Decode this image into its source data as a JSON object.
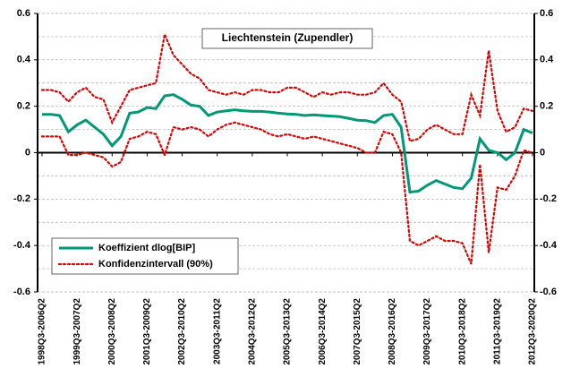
{
  "chart_data": {
    "type": "line",
    "title": "Liechtenstein (Zupendler)",
    "categories": [
      "1998Q3-2006Q2",
      null,
      null,
      null,
      "1999Q3-2007Q2",
      null,
      null,
      null,
      "2000Q3-2008Q2",
      null,
      null,
      null,
      "2001Q3-2009Q2",
      null,
      null,
      null,
      "2002Q3-2010Q2",
      null,
      null,
      null,
      "2003Q3-2011Q2",
      null,
      null,
      null,
      "2004Q3-2012Q2",
      null,
      null,
      null,
      "2005Q3-2013Q2",
      null,
      null,
      null,
      "2006Q3-2014Q2",
      null,
      null,
      null,
      "2007Q3-2015Q2",
      null,
      null,
      null,
      "2008Q3-2016Q2",
      null,
      null,
      null,
      "2009Q3-2017Q2",
      null,
      null,
      null,
      "2010Q3-2018Q2",
      null,
      null,
      null,
      "2011Q3-2019Q2",
      null,
      null,
      null,
      "2012Q3-2020Q2"
    ],
    "series": [
      {
        "name": "Koeffizient dlog[BIP]",
        "color": "#009977",
        "style": "solid",
        "values": [
          0.165,
          0.165,
          0.16,
          0.09,
          0.12,
          0.14,
          0.11,
          0.08,
          0.03,
          0.07,
          0.17,
          0.175,
          0.195,
          0.19,
          0.245,
          0.25,
          0.23,
          0.205,
          0.2,
          0.16,
          0.175,
          0.18,
          0.185,
          0.18,
          0.178,
          0.178,
          0.175,
          0.17,
          0.167,
          0.165,
          0.16,
          0.163,
          0.16,
          0.158,
          0.155,
          0.148,
          0.14,
          0.138,
          0.13,
          0.16,
          0.165,
          0.11,
          -0.17,
          -0.165,
          -0.14,
          -0.12,
          -0.135,
          -0.15,
          -0.155,
          -0.11,
          0.06,
          0.01,
          0.0,
          -0.03,
          0.0,
          0.1,
          0.085
        ]
      },
      {
        "name": "Konfidenzintervall (90%)",
        "color": "#e00000",
        "style": "dotted",
        "values": [
          0.27,
          0.27,
          0.26,
          0.22,
          0.26,
          0.28,
          0.24,
          0.23,
          0.13,
          0.2,
          0.27,
          0.28,
          0.29,
          0.3,
          0.51,
          0.42,
          0.38,
          0.34,
          0.32,
          0.27,
          0.26,
          0.25,
          0.26,
          0.25,
          0.27,
          0.27,
          0.26,
          0.26,
          0.28,
          0.28,
          0.26,
          0.24,
          0.26,
          0.25,
          0.26,
          0.26,
          0.25,
          0.25,
          0.26,
          0.3,
          0.25,
          0.22,
          0.05,
          0.06,
          0.1,
          0.12,
          0.1,
          0.08,
          0.08,
          0.25,
          0.16,
          0.44,
          0.18,
          0.09,
          0.11,
          0.19,
          0.18
        ],
        "lower": [
          0.07,
          0.07,
          0.07,
          -0.01,
          -0.01,
          0.0,
          -0.01,
          -0.02,
          -0.06,
          -0.04,
          0.06,
          0.07,
          0.09,
          0.08,
          -0.01,
          0.11,
          0.1,
          0.11,
          0.1,
          0.07,
          0.1,
          0.12,
          0.13,
          0.12,
          0.11,
          0.1,
          0.08,
          0.07,
          0.08,
          0.07,
          0.06,
          0.07,
          0.06,
          0.05,
          0.04,
          0.03,
          0.02,
          0.0,
          0.0,
          0.09,
          0.08,
          0.0,
          -0.38,
          -0.4,
          -0.38,
          -0.36,
          -0.38,
          -0.38,
          -0.39,
          -0.48,
          -0.05,
          -0.43,
          -0.15,
          -0.16,
          -0.1,
          0.01,
          0.0
        ]
      }
    ],
    "ylim": [
      -0.6,
      0.6
    ],
    "yticks": [
      0.6,
      0.4,
      0.2,
      0,
      -0.2,
      -0.4,
      -0.6
    ],
    "grid": true,
    "legend": "lower-left"
  }
}
